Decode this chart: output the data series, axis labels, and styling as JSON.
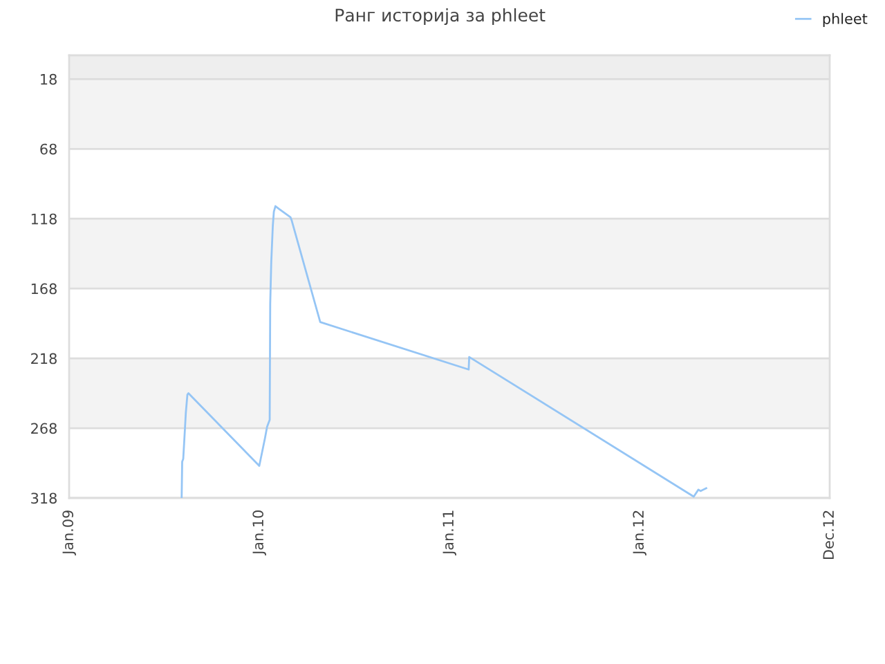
{
  "chart_data": {
    "type": "line",
    "title": "Ранг историја за phleet",
    "x": [
      "2009-08-05",
      "2009-08-06",
      "2009-08-08",
      "2009-08-10",
      "2009-08-13",
      "2009-08-16",
      "2009-08-18",
      "2010-01-01",
      "2010-01-12",
      "2010-01-16",
      "2010-01-21",
      "2010-01-22",
      "2010-01-24",
      "2010-01-27",
      "2010-01-29",
      "2010-02-01",
      "2010-02-08",
      "2010-03-02",
      "2010-03-04",
      "2010-04-28",
      "2011-02-07",
      "2011-02-08",
      "2012-04-14",
      "2012-04-23",
      "2012-04-27",
      "2012-05-08"
    ],
    "series": [
      {
        "name": "phleet",
        "color": "#95c5f5",
        "values": [
          318,
          292,
          290,
          277,
          257,
          244,
          243,
          295,
          275,
          267,
          262,
          179,
          149,
          123,
          113,
          109,
          111,
          117,
          119,
          192,
          226,
          217,
          317,
          312,
          313,
          311
        ]
      }
    ],
    "xlim": [
      "2009-01-01",
      "2012-12-31"
    ],
    "xticks": [
      {
        "value": "2009-01-01",
        "label": "Jan.09"
      },
      {
        "value": "2010-01-01",
        "label": "Jan.10"
      },
      {
        "value": "2011-01-01",
        "label": "Jan.11"
      },
      {
        "value": "2012-01-01",
        "label": "Jan.12"
      },
      {
        "value": "2012-12-31",
        "label": "Dec.12"
      }
    ],
    "ylim": [
      318,
      1
    ],
    "yticks": [
      18,
      68,
      118,
      168,
      218,
      268,
      318
    ],
    "bands": [
      {
        "axis": "y",
        "from": 1,
        "to": 18,
        "color": "#eeeeee"
      },
      {
        "axis": "y",
        "from": 18,
        "to": 68,
        "color": "#f3f3f3"
      },
      {
        "axis": "y",
        "from": 118,
        "to": 168,
        "color": "#f3f3f3"
      },
      {
        "axis": "y",
        "from": 218,
        "to": 268,
        "color": "#f3f3f3"
      }
    ],
    "grid": "y",
    "legend": "top right"
  }
}
